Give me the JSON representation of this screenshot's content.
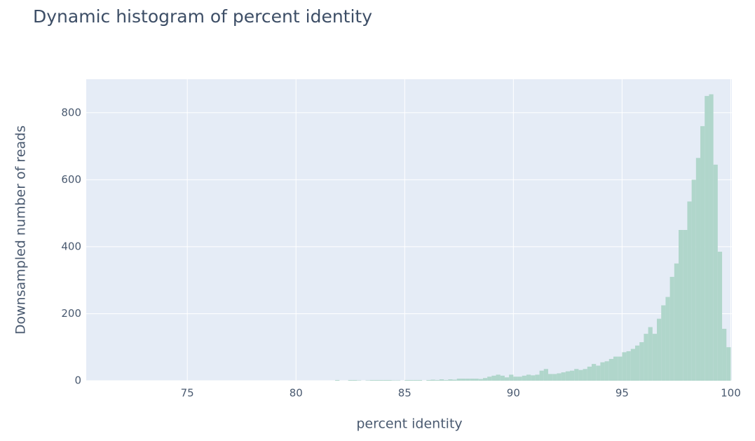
{
  "chart_data": {
    "type": "histogram",
    "title": "Dynamic histogram of percent identity",
    "x_label": "percent identity",
    "y_label": "Downsampled number of reads",
    "bins": [
      81.8,
      82,
      82.2,
      82.4,
      82.6,
      82.8,
      83,
      83.2,
      83.4,
      83.6,
      83.8,
      84,
      84.2,
      84.4,
      84.6,
      84.8,
      85,
      85.2,
      85.4,
      85.6,
      85.8,
      86,
      86.2,
      86.4,
      86.6,
      86.8,
      87,
      87.2,
      87.4,
      87.6,
      87.8,
      88,
      88.2,
      88.4,
      88.6,
      88.8,
      89,
      89.2,
      89.4,
      89.6,
      89.8,
      90,
      90.2,
      90.4,
      90.6,
      90.8,
      91,
      91.2,
      91.4,
      91.6,
      91.8,
      92,
      92.2,
      92.4,
      92.6,
      92.8,
      93,
      93.2,
      93.4,
      93.6,
      93.8,
      94,
      94.2,
      94.4,
      94.6,
      94.8,
      95,
      95.2,
      95.4,
      95.6,
      95.8,
      96,
      96.2,
      96.4,
      96.6,
      96.8,
      97,
      97.2,
      97.4,
      97.6,
      97.8,
      98,
      98.2,
      98.4,
      98.6,
      98.8,
      99,
      99.2,
      99.4,
      99.6,
      99.8,
      100
    ],
    "counts": [
      2,
      0,
      0,
      2,
      2,
      1,
      0,
      1,
      2,
      2,
      2,
      2,
      2,
      1,
      1,
      0,
      2,
      2,
      2,
      2,
      0,
      2,
      3,
      2,
      4,
      2,
      4,
      3,
      6,
      6,
      6,
      6,
      6,
      5,
      8,
      12,
      15,
      18,
      15,
      10,
      18,
      12,
      12,
      15,
      18,
      16,
      18,
      30,
      35,
      20,
      20,
      22,
      25,
      28,
      30,
      35,
      32,
      35,
      42,
      50,
      45,
      55,
      58,
      65,
      72,
      72,
      85,
      88,
      95,
      105,
      115,
      140,
      160,
      140,
      185,
      225,
      250,
      310,
      350,
      450,
      450,
      535,
      600,
      665,
      760,
      850,
      855,
      645,
      385,
      155,
      100
    ],
    "color": "#b0d6cb",
    "xlim": [
      70.35,
      100.05
    ],
    "xticks": [
      75,
      80,
      85,
      90,
      95,
      100
    ],
    "ylim": [
      0,
      900
    ],
    "yticks": [
      0,
      200,
      400,
      600,
      800
    ],
    "grid": true
  }
}
